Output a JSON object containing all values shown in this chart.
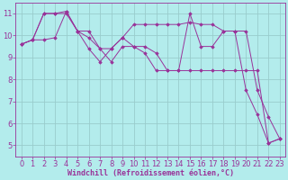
{
  "xlabel": "Windchill (Refroidissement éolien,°C)",
  "background_color": "#b3ecec",
  "line_color": "#993399",
  "grid_color": "#99cccc",
  "xlim": [
    -0.5,
    23.5
  ],
  "ylim": [
    4.5,
    11.5
  ],
  "xticks": [
    0,
    1,
    2,
    3,
    4,
    5,
    6,
    7,
    8,
    9,
    10,
    11,
    12,
    13,
    14,
    15,
    16,
    17,
    18,
    19,
    20,
    21,
    22,
    23
  ],
  "yticks": [
    5,
    6,
    7,
    8,
    9,
    10,
    11
  ],
  "series": [
    [
      9.6,
      9.8,
      11.0,
      11.0,
      11.1,
      10.2,
      10.2,
      9.4,
      9.4,
      9.9,
      10.5,
      10.5,
      10.5,
      10.5,
      10.5,
      10.6,
      10.5,
      10.5,
      10.2,
      10.2,
      10.2,
      7.5,
      6.3,
      5.3
    ],
    [
      9.6,
      9.8,
      11.0,
      11.0,
      11.0,
      10.2,
      9.4,
      8.8,
      9.4,
      9.9,
      9.5,
      9.5,
      9.2,
      8.4,
      8.4,
      11.0,
      9.5,
      9.5,
      10.2,
      10.2,
      7.5,
      6.4,
      5.1,
      5.3
    ],
    [
      9.6,
      9.8,
      9.8,
      9.9,
      11.1,
      10.2,
      9.9,
      9.4,
      8.8,
      9.5,
      9.5,
      9.2,
      8.4,
      8.4,
      8.4,
      8.4,
      8.4,
      8.4,
      8.4,
      8.4,
      8.4,
      8.4,
      5.1,
      5.3
    ]
  ],
  "xlabel_fontsize": 6,
  "tick_fontsize": 6,
  "figsize": [
    3.2,
    2.0
  ],
  "dpi": 100
}
